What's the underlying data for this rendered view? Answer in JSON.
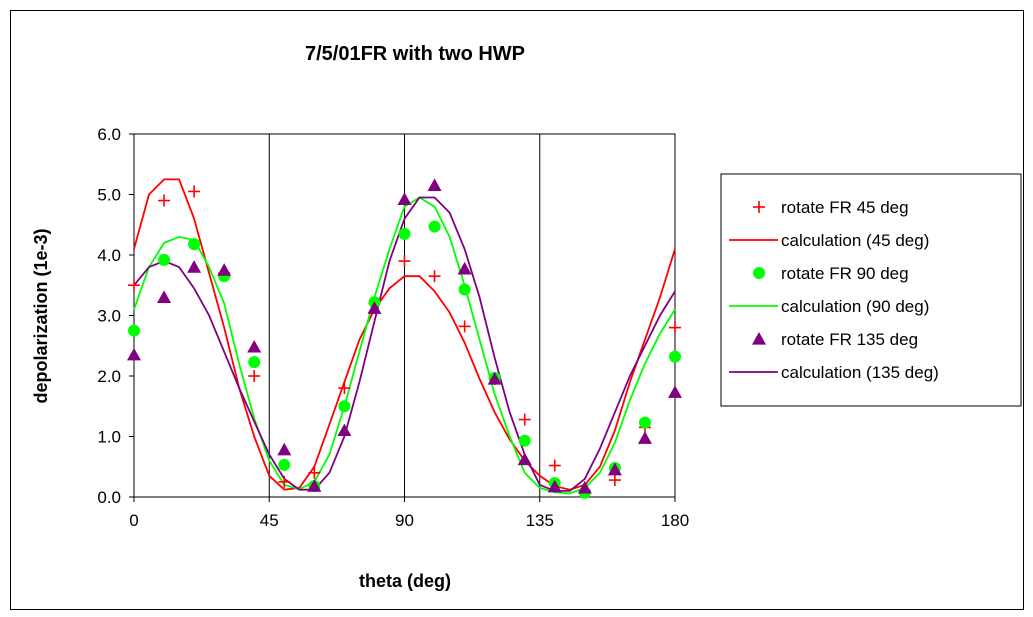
{
  "chart_data": {
    "type": "scatter",
    "title": "7/5/01FR with two HWP",
    "xlabel": "theta (deg)",
    "ylabel": "depolarization (1e-3)",
    "xlim": [
      0,
      180
    ],
    "ylim": [
      0,
      6
    ],
    "x_ticks": [
      0,
      45,
      90,
      135,
      180
    ],
    "x_tick_labels": [
      "0",
      "45",
      "90",
      "135",
      "180"
    ],
    "y_ticks": [
      0,
      1,
      2,
      3,
      4,
      5,
      6
    ],
    "y_tick_labels": [
      "0.0",
      "1.0",
      "2.0",
      "3.0",
      "4.0",
      "5.0",
      "6.0"
    ],
    "grid": "vertical",
    "legend_position": "right",
    "series": [
      {
        "name": "rotate FR 45 deg",
        "kind": "points",
        "marker": "plus",
        "color": "#ff0000",
        "x": [
          0,
          10,
          20,
          30,
          40,
          50,
          60,
          70,
          80,
          90,
          100,
          110,
          120,
          130,
          140,
          150,
          160,
          170,
          180
        ],
        "y": [
          3.5,
          4.9,
          5.05,
          3.7,
          2.0,
          0.25,
          0.4,
          1.8,
          3.2,
          3.9,
          3.65,
          2.82,
          1.95,
          1.28,
          0.52,
          0.1,
          0.28,
          1.15,
          2.8
        ]
      },
      {
        "name": "calculation  (45 deg)",
        "kind": "line",
        "color": "#ff0000",
        "x": [
          0,
          5,
          10,
          15,
          20,
          25,
          30,
          35,
          40,
          45,
          50,
          55,
          60,
          65,
          70,
          75,
          80,
          85,
          90,
          95,
          100,
          105,
          110,
          115,
          120,
          125,
          130,
          135,
          140,
          145,
          150,
          155,
          160,
          165,
          170,
          175,
          180
        ],
        "y": [
          4.1,
          5.0,
          5.25,
          5.25,
          4.6,
          3.7,
          2.8,
          1.8,
          1.0,
          0.35,
          0.12,
          0.15,
          0.5,
          1.2,
          1.9,
          2.6,
          3.1,
          3.45,
          3.65,
          3.65,
          3.4,
          3.05,
          2.55,
          1.95,
          1.4,
          0.95,
          0.6,
          0.35,
          0.18,
          0.12,
          0.2,
          0.5,
          1.1,
          1.9,
          2.6,
          3.3,
          4.1
        ]
      },
      {
        "name": "rotate FR 90 deg",
        "kind": "points",
        "marker": "circle",
        "color": "#00ff00",
        "x": [
          0,
          10,
          20,
          30,
          40,
          50,
          60,
          70,
          80,
          90,
          100,
          110,
          120,
          130,
          140,
          150,
          160,
          170,
          180
        ],
        "y": [
          2.75,
          3.92,
          4.18,
          3.65,
          2.23,
          0.53,
          0.18,
          1.5,
          3.22,
          4.35,
          4.47,
          3.43,
          1.97,
          0.93,
          0.23,
          0.07,
          0.48,
          1.23,
          2.32
        ]
      },
      {
        "name": "calculation  (90 deg)",
        "kind": "line",
        "color": "#00ff00",
        "x": [
          0,
          5,
          10,
          15,
          20,
          25,
          30,
          35,
          40,
          45,
          50,
          55,
          60,
          65,
          70,
          75,
          80,
          85,
          90,
          95,
          100,
          105,
          110,
          115,
          120,
          125,
          130,
          135,
          140,
          145,
          150,
          155,
          160,
          165,
          170,
          175,
          180
        ],
        "y": [
          3.1,
          3.8,
          4.2,
          4.3,
          4.25,
          3.8,
          3.2,
          2.2,
          1.3,
          0.6,
          0.2,
          0.13,
          0.25,
          0.7,
          1.5,
          2.4,
          3.3,
          4.1,
          4.8,
          4.95,
          4.8,
          4.3,
          3.5,
          2.6,
          1.7,
          1.0,
          0.4,
          0.15,
          0.08,
          0.06,
          0.15,
          0.4,
          0.9,
          1.6,
          2.2,
          2.7,
          3.1
        ]
      },
      {
        "name": "rotate FR 135 deg",
        "kind": "points",
        "marker": "triangle",
        "color": "#800080",
        "x": [
          0,
          10,
          20,
          30,
          40,
          50,
          60,
          70,
          80,
          90,
          100,
          110,
          120,
          130,
          140,
          150,
          160,
          170,
          180
        ],
        "y": [
          2.35,
          3.3,
          3.8,
          3.75,
          2.48,
          0.78,
          0.18,
          1.1,
          3.12,
          4.92,
          5.15,
          3.77,
          1.95,
          0.62,
          0.17,
          0.15,
          0.45,
          0.97,
          1.73
        ]
      },
      {
        "name": "calculation  (135 deg)",
        "kind": "line",
        "color": "#800080",
        "x": [
          0,
          5,
          10,
          15,
          20,
          25,
          30,
          35,
          40,
          45,
          50,
          55,
          60,
          65,
          70,
          75,
          80,
          85,
          90,
          95,
          100,
          105,
          110,
          115,
          120,
          125,
          130,
          135,
          140,
          145,
          150,
          155,
          160,
          165,
          170,
          175,
          180
        ],
        "y": [
          3.5,
          3.8,
          3.9,
          3.8,
          3.45,
          3.0,
          2.4,
          1.8,
          1.25,
          0.7,
          0.3,
          0.12,
          0.12,
          0.4,
          1.0,
          1.9,
          2.9,
          3.9,
          4.6,
          4.95,
          4.95,
          4.7,
          4.1,
          3.3,
          2.3,
          1.4,
          0.7,
          0.2,
          0.1,
          0.1,
          0.3,
          0.8,
          1.4,
          2.0,
          2.5,
          3.0,
          3.4
        ]
      }
    ]
  }
}
